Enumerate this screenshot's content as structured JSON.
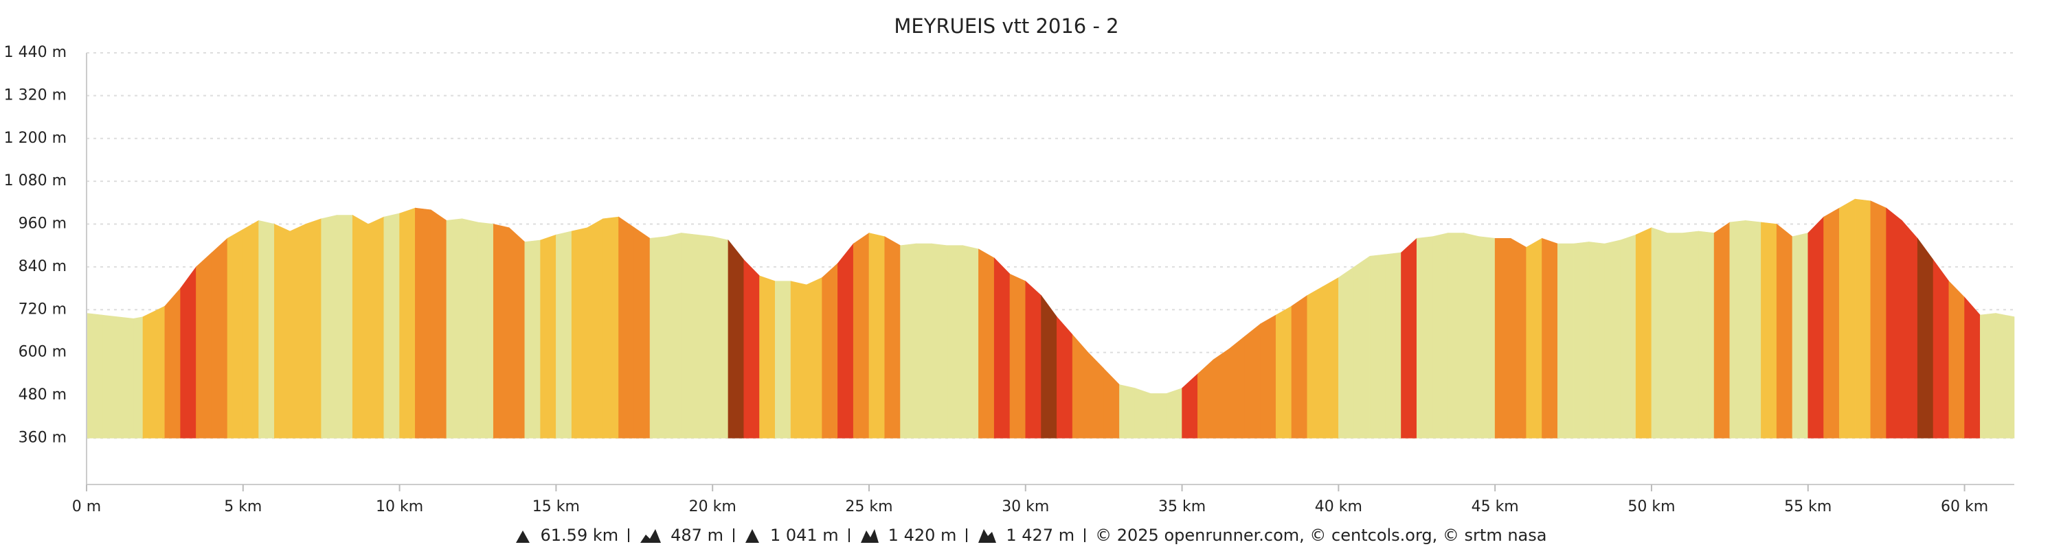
{
  "chart_data": {
    "type": "elevation",
    "title": "MEYRUEIS vtt 2016 - 2",
    "x": [
      0,
      0.5,
      1.5,
      1.8,
      2.5,
      3,
      3.5,
      4,
      4.5,
      5,
      5.5,
      6,
      6.5,
      7,
      7.5,
      8,
      8.5,
      9,
      9.5,
      10,
      10.5,
      11,
      11.5,
      12,
      12.5,
      13,
      13.5,
      14,
      14.5,
      15,
      15.5,
      16,
      16.5,
      17,
      17.5,
      18,
      18.5,
      19,
      19.5,
      20,
      20.5,
      21,
      21.5,
      22,
      22.5,
      23,
      23.5,
      24,
      24.5,
      25,
      25.5,
      26,
      26.5,
      27,
      27.5,
      28,
      28.5,
      29,
      29.5,
      30,
      30.5,
      31,
      31.5,
      32,
      32.5,
      33,
      33.5,
      34,
      34.5,
      35,
      35.5,
      36,
      36.5,
      37,
      37.5,
      38,
      38.5,
      39,
      39.5,
      40,
      40.5,
      41,
      41.5,
      42,
      42.5,
      43,
      43.5,
      44,
      44.5,
      45,
      45.5,
      46,
      46.5,
      47,
      47.5,
      48,
      48.5,
      49,
      49.5,
      50,
      50.5,
      51,
      51.5,
      52,
      52.5,
      53,
      53.5,
      54,
      54.5,
      55,
      55.5,
      56,
      56.5,
      57,
      57.5,
      58,
      58.5,
      59,
      59.5,
      60,
      60.5,
      61,
      61.59
    ],
    "values": [
      710,
      705,
      695,
      700,
      730,
      780,
      840,
      880,
      920,
      945,
      970,
      960,
      940,
      960,
      975,
      985,
      985,
      960,
      980,
      990,
      1005,
      1000,
      970,
      975,
      965,
      960,
      950,
      910,
      915,
      930,
      940,
      950,
      975,
      980,
      950,
      920,
      925,
      935,
      930,
      925,
      915,
      860,
      815,
      800,
      800,
      790,
      810,
      850,
      905,
      935,
      925,
      900,
      905,
      905,
      900,
      900,
      890,
      865,
      820,
      800,
      760,
      700,
      650,
      600,
      555,
      510,
      500,
      485,
      485,
      500,
      540,
      580,
      610,
      645,
      680,
      705,
      730,
      760,
      785,
      810,
      840,
      870,
      875,
      880,
      920,
      925,
      935,
      935,
      925,
      920,
      920,
      895,
      920,
      905,
      905,
      910,
      905,
      915,
      930,
      950,
      935,
      935,
      940,
      935,
      965,
      970,
      965,
      960,
      925,
      935,
      980,
      1005,
      1030,
      1025,
      1005,
      970,
      920,
      860,
      800,
      755,
      705,
      710,
      700
    ],
    "colors": [
      "#e4e59b",
      "#e4e59b",
      "#e4e59b",
      "#f5c242",
      "#f08a2a",
      "#e43d22",
      "#f08a2a",
      "#f08a2a",
      "#f5c242",
      "#f5c242",
      "#e4e59b",
      "#f5c242",
      "#f5c242",
      "#f5c242",
      "#e4e59b",
      "#e4e59b",
      "#f5c242",
      "#f5c242",
      "#e4e59b",
      "#f5c242",
      "#f08a2a",
      "#f08a2a",
      "#e4e59b",
      "#e4e59b",
      "#e4e59b",
      "#f08a2a",
      "#f08a2a",
      "#e4e59b",
      "#f5c242",
      "#e4e59b",
      "#f5c242",
      "#f5c242",
      "#f5c242",
      "#f08a2a",
      "#f08a2a",
      "#e4e59b",
      "#e4e59b",
      "#e4e59b",
      "#e4e59b",
      "#e4e59b",
      "#9a3a12",
      "#e43d22",
      "#f5c242",
      "#e4e59b",
      "#f5c242",
      "#f5c242",
      "#f08a2a",
      "#e43d22",
      "#f08a2a",
      "#f5c242",
      "#f08a2a",
      "#e4e59b",
      "#e4e59b",
      "#e4e59b",
      "#e4e59b",
      "#e4e59b",
      "#f08a2a",
      "#e43d22",
      "#f08a2a",
      "#e43d22",
      "#9a3a12",
      "#e43d22",
      "#f08a2a",
      "#f08a2a",
      "#f08a2a",
      "#e4e59b",
      "#e4e59b",
      "#e4e59b",
      "#e4e59b",
      "#e43d22",
      "#f08a2a",
      "#f08a2a",
      "#f08a2a",
      "#f08a2a",
      "#f08a2a",
      "#f5c242",
      "#f08a2a",
      "#f5c242",
      "#f5c242",
      "#e4e59b",
      "#e4e59b",
      "#e4e59b",
      "#e4e59b",
      "#e43d22",
      "#e4e59b",
      "#e4e59b",
      "#e4e59b",
      "#e4e59b",
      "#e4e59b",
      "#f08a2a",
      "#f08a2a",
      "#f5c242",
      "#f08a2a",
      "#e4e59b",
      "#e4e59b",
      "#e4e59b",
      "#e4e59b",
      "#e4e59b",
      "#f5c242",
      "#e4e59b",
      "#e4e59b",
      "#e4e59b",
      "#e4e59b",
      "#f08a2a",
      "#e4e59b",
      "#e4e59b",
      "#f5c242",
      "#f08a2a",
      "#e4e59b",
      "#e43d22",
      "#f08a2a",
      "#f5c242",
      "#f5c242",
      "#f08a2a",
      "#e43d22",
      "#e43d22",
      "#9a3a12",
      "#e43d22",
      "#f08a2a",
      "#e43d22",
      "#e4e59b",
      "#e4e59b"
    ],
    "xlim": [
      0,
      61.59
    ],
    "ylim": [
      230,
      1440
    ],
    "xticks": [
      {
        "value": 0,
        "label": "0 m"
      },
      {
        "value": 5,
        "label": "5 km"
      },
      {
        "value": 10,
        "label": "10 km"
      },
      {
        "value": 15,
        "label": "15 km"
      },
      {
        "value": 20,
        "label": "20 km"
      },
      {
        "value": 25,
        "label": "25 km"
      },
      {
        "value": 30,
        "label": "30 km"
      },
      {
        "value": 35,
        "label": "35 km"
      },
      {
        "value": 40,
        "label": "40 km"
      },
      {
        "value": 45,
        "label": "45 km"
      },
      {
        "value": 50,
        "label": "50 km"
      },
      {
        "value": 55,
        "label": "55 km"
      },
      {
        "value": 60,
        "label": "60 km"
      }
    ],
    "yticks": [
      {
        "value": 360,
        "label": "360 m"
      },
      {
        "value": 480,
        "label": "480 m"
      },
      {
        "value": 600,
        "label": "600 m"
      },
      {
        "value": 720,
        "label": "720 m"
      },
      {
        "value": 840,
        "label": "840 m"
      },
      {
        "value": 960,
        "label": "960 m"
      },
      {
        "value": 1080,
        "label": "1 080 m"
      },
      {
        "value": 1200,
        "label": "1 200 m"
      },
      {
        "value": 1320,
        "label": "1 320 m"
      },
      {
        "value": 1440,
        "label": "1 440 m"
      }
    ],
    "grid": true,
    "stats": [
      "61.59 km",
      "487 m",
      "1 041 m",
      "1 420 m",
      "1 427 m"
    ],
    "credits": "© 2025 openrunner.com, © centcols.org, © srtm nasa"
  }
}
